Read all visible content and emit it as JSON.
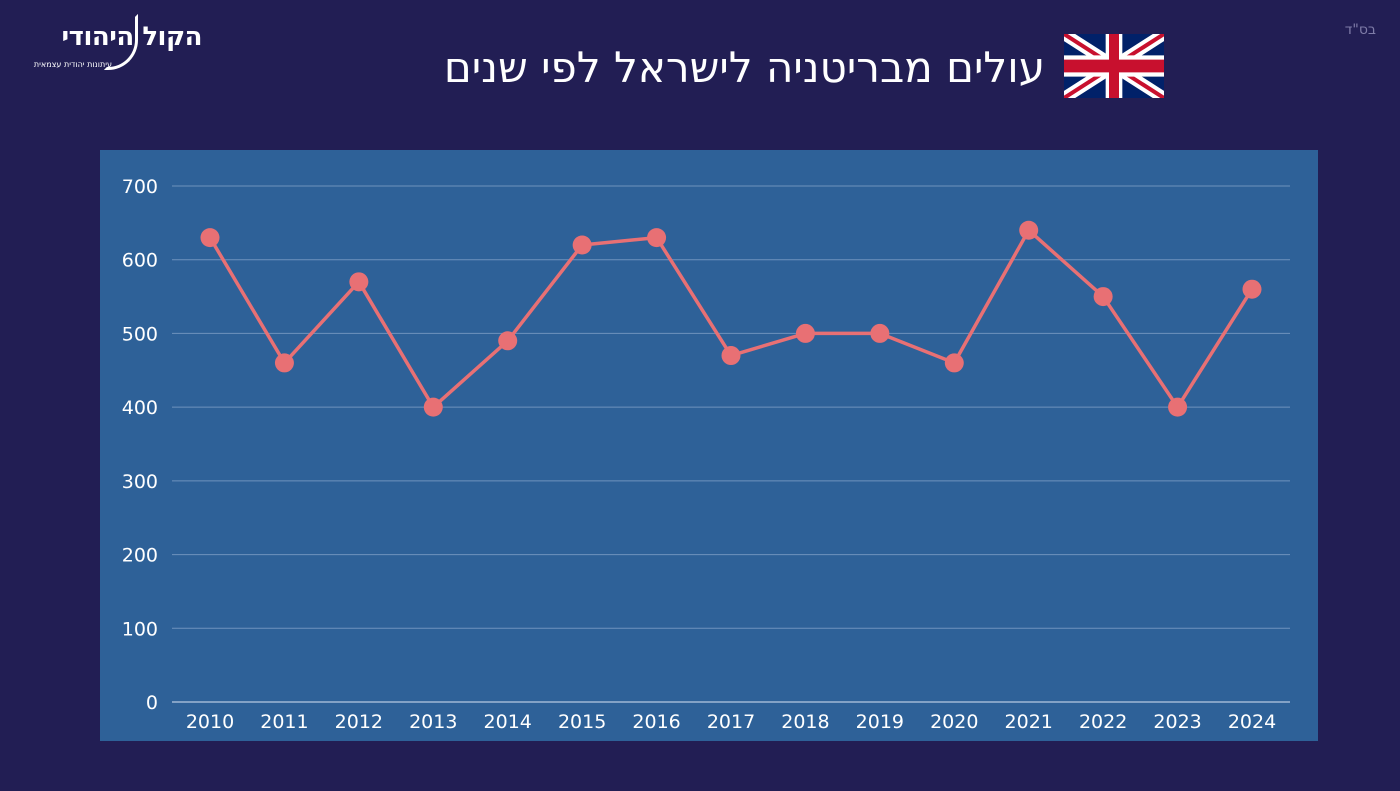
{
  "header": {
    "bsd": "בס\"ד",
    "title": "עולים מבריטניה לישראל לפי שנים",
    "logo_main": "הקול היהודי",
    "logo_sub": "עיתונות יהודית עצמאית",
    "flag_icon": "uk-flag-icon"
  },
  "colors": {
    "background": "#221e54",
    "plot_background": "#2e6198",
    "line": "#e87074",
    "gridline": "#6f92bd",
    "text": "#ffffff"
  },
  "chart_data": {
    "type": "line",
    "x": [
      "2010",
      "2011",
      "2012",
      "2013",
      "2014",
      "2015",
      "2016",
      "2017",
      "2018",
      "2019",
      "2020",
      "2021",
      "2022",
      "2023",
      "2024"
    ],
    "series": [
      {
        "values": [
          630,
          460,
          570,
          400,
          490,
          620,
          630,
          470,
          500,
          500,
          460,
          640,
          550,
          400,
          560
        ]
      }
    ],
    "yticks": [
      "0",
      "100",
      "200",
      "300",
      "400",
      "500",
      "600",
      "700"
    ],
    "ylim": [
      0,
      700
    ],
    "grid": true,
    "legend": "none"
  }
}
